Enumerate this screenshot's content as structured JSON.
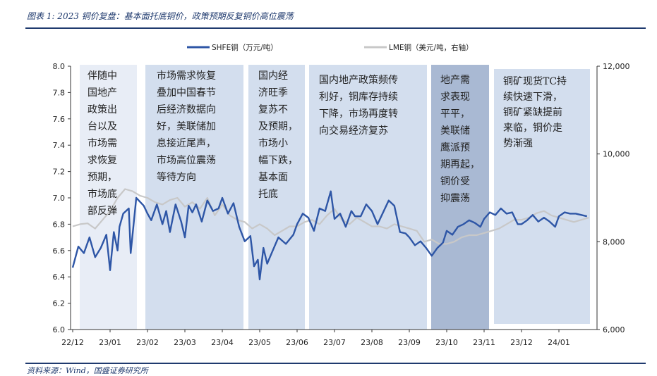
{
  "header": {
    "title": "图表 1:  2023 铜价复盘：基本面托底铜价，政策预期反复铜价高位震荡"
  },
  "footer": {
    "source": "资料来源：Wind，国盛证券研究所"
  },
  "colors": {
    "shfe": "#2e56a6",
    "lme": "#c8c8c8",
    "box_light": "#e8edf6",
    "box_mid": "#d3deee",
    "box_dark": "#a9b9d3",
    "rule": "#1f3a6e"
  },
  "chart_data": {
    "type": "line",
    "title": "",
    "grid": false,
    "legend_position": "top-center",
    "x_tick_labels": [
      "22/12",
      "23/01",
      "23/02",
      "23/03",
      "23/04",
      "23/05",
      "23/06",
      "23/07",
      "23/08",
      "23/09",
      "23/10",
      "23/11",
      "23/12",
      "24/01"
    ],
    "y_left": {
      "label": "",
      "ylim": [
        6.0,
        8.0
      ],
      "ticks": [
        "6.0",
        "6.2",
        "6.4",
        "6.6",
        "6.8",
        "7.0",
        "7.2",
        "7.4",
        "7.6",
        "7.8",
        "8.0"
      ]
    },
    "y_right": {
      "label": "",
      "ylim": [
        6000,
        12000
      ],
      "ticks": [
        "6,000",
        "8,000",
        "10,000",
        "12,000"
      ]
    },
    "series": [
      {
        "name": "SHFE铜（万元/吨）",
        "axis": "left",
        "x": [
          0.0,
          0.15,
          0.3,
          0.45,
          0.6,
          0.75,
          0.9,
          1.0,
          1.1,
          1.2,
          1.25,
          1.35,
          1.5,
          1.55,
          1.7,
          1.9,
          2.0,
          2.1,
          2.25,
          2.4,
          2.5,
          2.6,
          2.75,
          2.9,
          3.0,
          3.1,
          3.2,
          3.3,
          3.45,
          3.6,
          3.75,
          3.9,
          4.0,
          4.15,
          4.3,
          4.45,
          4.6,
          4.75,
          4.85,
          4.95,
          5.0,
          5.1,
          5.2,
          5.35,
          5.5,
          5.7,
          5.9,
          6.0,
          6.15,
          6.3,
          6.45,
          6.6,
          6.75,
          6.9,
          7.0,
          7.15,
          7.3,
          7.45,
          7.55,
          7.7,
          7.85,
          8.0,
          8.15,
          8.3,
          8.45,
          8.6,
          8.75,
          8.9,
          9.0,
          9.15,
          9.3,
          9.45,
          9.6,
          9.75,
          9.9,
          10.0,
          10.15,
          10.3,
          10.45,
          10.6,
          10.75,
          10.9,
          11.0,
          11.15,
          11.3,
          11.45,
          11.6,
          11.75,
          11.9,
          12.0,
          12.15,
          12.3,
          12.45,
          12.6,
          12.75,
          12.9,
          13.0,
          13.15,
          13.3,
          13.45,
          13.6,
          13.75
        ],
        "values": [
          6.47,
          6.63,
          6.58,
          6.7,
          6.55,
          6.62,
          6.72,
          6.45,
          6.74,
          6.6,
          6.78,
          6.88,
          6.92,
          6.58,
          7.0,
          6.94,
          6.88,
          6.83,
          6.95,
          6.8,
          6.9,
          6.74,
          6.95,
          6.82,
          6.7,
          6.94,
          6.89,
          6.95,
          6.82,
          6.98,
          6.9,
          6.92,
          7.0,
          6.88,
          6.96,
          6.78,
          6.67,
          6.71,
          6.48,
          6.53,
          6.38,
          6.62,
          6.5,
          6.6,
          6.7,
          6.65,
          6.72,
          6.8,
          6.88,
          6.85,
          6.75,
          6.92,
          6.9,
          7.05,
          6.84,
          6.88,
          6.78,
          6.9,
          6.86,
          6.86,
          6.95,
          6.9,
          6.8,
          6.89,
          6.98,
          6.94,
          6.74,
          6.73,
          6.7,
          6.64,
          6.67,
          6.62,
          6.56,
          6.62,
          6.66,
          6.75,
          6.72,
          6.78,
          6.8,
          6.83,
          6.81,
          6.78,
          6.84,
          6.89,
          6.87,
          6.92,
          6.88,
          6.89,
          6.8,
          6.8,
          6.83,
          6.87,
          6.82,
          6.85,
          6.82,
          6.78,
          6.86,
          6.89,
          6.88,
          6.88,
          6.87,
          6.86
        ]
      },
      {
        "name": "LME铜（美元/吨，右轴）",
        "axis": "right",
        "x": [
          0.0,
          0.2,
          0.4,
          0.6,
          0.8,
          1.0,
          1.2,
          1.4,
          1.6,
          1.8,
          2.0,
          2.2,
          2.4,
          2.6,
          2.8,
          3.0,
          3.2,
          3.4,
          3.6,
          3.8,
          4.0,
          4.2,
          4.4,
          4.6,
          4.8,
          5.0,
          5.2,
          5.4,
          5.6,
          5.8,
          6.0,
          6.2,
          6.4,
          6.6,
          6.8,
          7.0,
          7.2,
          7.4,
          7.6,
          7.8,
          8.0,
          8.2,
          8.4,
          8.6,
          8.8,
          9.0,
          9.2,
          9.4,
          9.6,
          9.8,
          10.0,
          10.2,
          10.4,
          10.6,
          10.8,
          11.0,
          11.2,
          11.4,
          11.6,
          11.8,
          12.0,
          12.2,
          12.4,
          12.6,
          12.8,
          13.0,
          13.2,
          13.4,
          13.6,
          13.8
        ],
        "values": [
          8350,
          8400,
          8420,
          8300,
          8500,
          8700,
          9000,
          9200,
          9150,
          9050,
          9000,
          8900,
          8850,
          8950,
          9000,
          8800,
          8900,
          8750,
          9000,
          8600,
          8850,
          8600,
          8500,
          8450,
          8300,
          8400,
          8300,
          8150,
          8250,
          8350,
          8350,
          8450,
          8500,
          8400,
          8600,
          8750,
          8500,
          8400,
          8550,
          8450,
          8350,
          8350,
          8300,
          8400,
          8350,
          8300,
          8250,
          8000,
          8050,
          7950,
          7950,
          8000,
          8100,
          8150,
          8150,
          8200,
          8250,
          8300,
          8400,
          8500,
          8500,
          8550,
          8650,
          8700,
          8600,
          8550,
          8500,
          8450,
          8500,
          8550
        ]
      }
    ],
    "annotations": [
      {
        "lines": [
          "伴随中",
          "国地产",
          "政策出",
          "台以及",
          "市场需",
          "求恢复",
          "预期，",
          "市场底",
          "部反弹"
        ],
        "shade": "light"
      },
      {
        "lines": [
          "市场需求恢复",
          "叠加中国春节",
          "后经济数据向",
          "好，美联储加",
          "息接近尾声，",
          "市场高位震荡",
          "等待方向"
        ],
        "shade": "mid"
      },
      {
        "lines": [
          "国内经",
          "济旺季",
          "复苏不",
          "及预期，",
          "市场小",
          "幅下跌，",
          "基本面",
          "托底"
        ],
        "shade": "mid"
      },
      {
        "lines": [
          "国内地产政策频传",
          "利好，铜库存持续",
          "下降，市场再度转",
          "向交易经济复苏"
        ],
        "shade": "mid"
      },
      {
        "lines": [
          "地产需",
          "求表现",
          "平平，",
          "美联储",
          "鹰派预",
          "期再起，",
          "铜价受",
          "抑震荡"
        ],
        "shade": "dark"
      },
      {
        "lines": [
          "铜矿现货TC持",
          "续快速下滑，",
          "铜矿紧缺提前",
          "来临，铜价走",
          "势渐强"
        ],
        "shade": "mid"
      }
    ]
  }
}
